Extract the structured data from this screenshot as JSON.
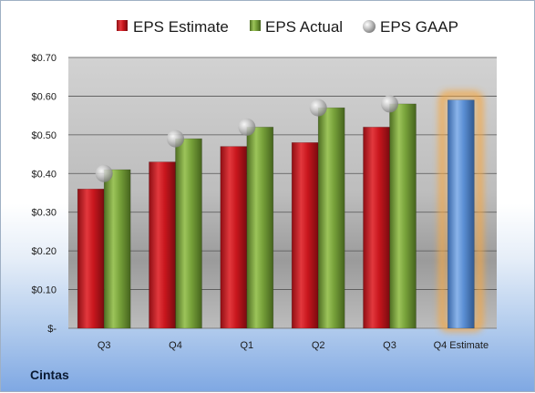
{
  "company": "Cintas",
  "chart_data": {
    "type": "bar",
    "categories": [
      "Q3",
      "Q4",
      "Q1",
      "Q2",
      "Q3",
      "Q4 Estimate"
    ],
    "series": [
      {
        "name": "EPS Estimate",
        "color": "#c8161d",
        "values": [
          0.36,
          0.43,
          0.47,
          0.48,
          0.52,
          null
        ]
      },
      {
        "name": "EPS Actual",
        "color": "#77a13a",
        "values": [
          0.41,
          0.49,
          0.52,
          0.57,
          0.58,
          null
        ]
      },
      {
        "name": "EPS GAAP",
        "color": "#b5b5b5",
        "marker": "sphere",
        "values": [
          0.4,
          0.49,
          0.52,
          0.57,
          0.58,
          null
        ]
      }
    ],
    "estimate": {
      "category": "Q4 Estimate",
      "value": 0.59,
      "color": "#5b8fd4",
      "highlight": "#f5a742"
    },
    "ylim": [
      0,
      0.7
    ],
    "yticks": [
      0,
      0.1,
      0.2,
      0.3,
      0.4,
      0.5,
      0.6,
      0.7
    ],
    "ytick_labels": [
      "$-",
      "$0.10",
      "$0.20",
      "$0.30",
      "$0.40",
      "$0.50",
      "$0.60",
      "$0.70"
    ],
    "grid": true,
    "legend": "top"
  }
}
